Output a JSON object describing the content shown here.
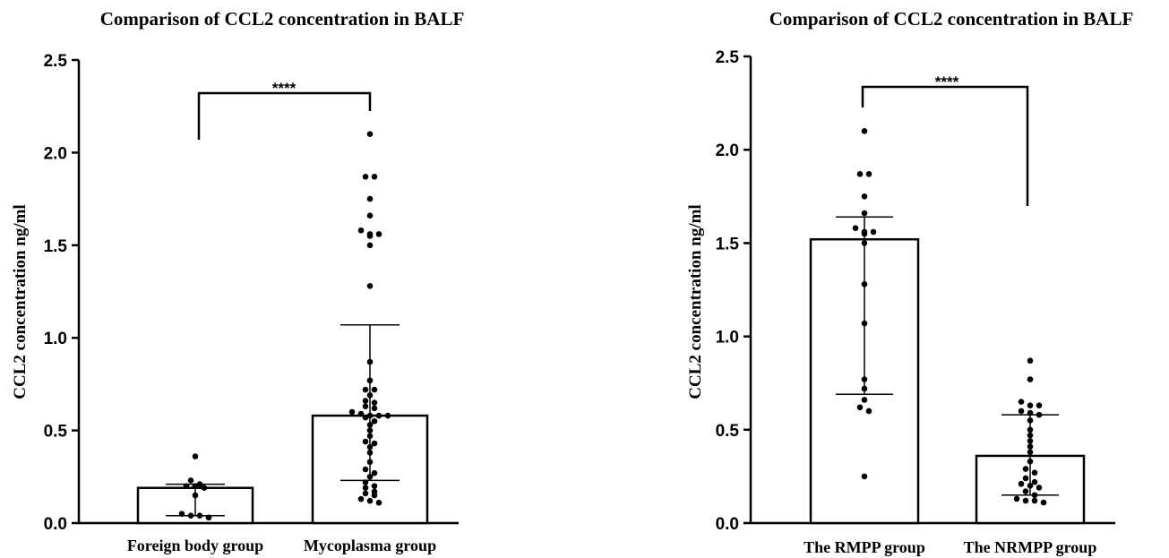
{
  "chart_data": [
    {
      "type": "bar",
      "title": "Comparison of CCL2 concentration in BALF",
      "ylabel": "CCL2 concentration ng/ml",
      "xlabel": "",
      "ylim": [
        0,
        2.5
      ],
      "yticks": [
        "0.0",
        "0.5",
        "1.0",
        "1.5",
        "2.0",
        "2.5"
      ],
      "grid": false,
      "categories": [
        "Foreign body group",
        "Mycoplasma group"
      ],
      "values": [
        0.19,
        0.58
      ],
      "error_low": [
        0.04,
        0.23
      ],
      "error_high": [
        0.21,
        1.07
      ],
      "significance": "****",
      "points": [
        [
          0.36,
          0.23,
          0.21,
          0.2,
          0.2,
          0.19,
          0.15,
          0.05,
          0.04,
          0.04,
          0.03
        ],
        [
          2.1,
          1.87,
          1.87,
          1.75,
          1.66,
          1.58,
          1.56,
          1.56,
          1.55,
          1.5,
          1.28,
          0.87,
          0.77,
          0.72,
          0.72,
          0.69,
          0.66,
          0.65,
          0.63,
          0.62,
          0.6,
          0.59,
          0.58,
          0.58,
          0.58,
          0.57,
          0.55,
          0.53,
          0.5,
          0.47,
          0.44,
          0.43,
          0.41,
          0.38,
          0.33,
          0.29,
          0.27,
          0.25,
          0.22,
          0.2,
          0.19,
          0.17,
          0.16,
          0.15,
          0.13,
          0.12,
          0.11
        ]
      ]
    },
    {
      "type": "bar",
      "title": "Comparison of CCL2 concentration in BALF",
      "ylabel": "CCL2 concentration ng/ml",
      "xlabel": "",
      "ylim": [
        0,
        2.5
      ],
      "yticks": [
        "0.0",
        "0.5",
        "1.0",
        "1.5",
        "2.0",
        "2.5"
      ],
      "grid": false,
      "categories": [
        "The RMPP group",
        "The NRMPP group"
      ],
      "values": [
        1.52,
        0.36
      ],
      "error_low": [
        0.69,
        0.15
      ],
      "error_high": [
        1.64,
        0.58
      ],
      "significance": "****",
      "points": [
        [
          2.1,
          1.87,
          1.87,
          1.75,
          1.66,
          1.58,
          1.56,
          1.56,
          1.55,
          1.5,
          1.28,
          1.07,
          0.77,
          0.72,
          0.66,
          0.62,
          0.6,
          0.25
        ],
        [
          0.87,
          0.77,
          0.65,
          0.63,
          0.63,
          0.6,
          0.59,
          0.58,
          0.55,
          0.5,
          0.47,
          0.44,
          0.41,
          0.38,
          0.33,
          0.29,
          0.27,
          0.24,
          0.22,
          0.21,
          0.2,
          0.19,
          0.17,
          0.15,
          0.13,
          0.12,
          0.12,
          0.11
        ]
      ]
    }
  ]
}
